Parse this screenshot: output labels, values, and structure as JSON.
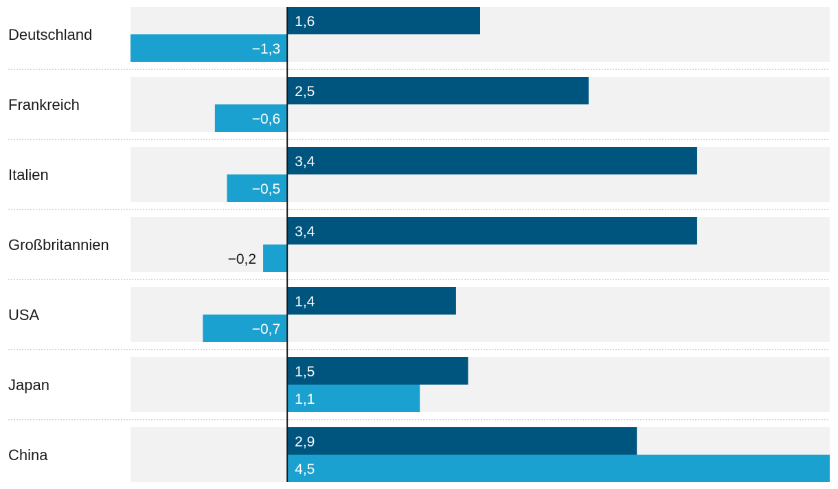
{
  "chart_data": {
    "type": "bar",
    "orientation": "horizontal",
    "categories": [
      "Deutschland",
      "Frankreich",
      "Italien",
      "Großbritannien",
      "USA",
      "Japan",
      "China"
    ],
    "series": [
      {
        "values": [
          1.6,
          2.5,
          3.4,
          3.4,
          1.4,
          1.5,
          2.9
        ],
        "labels": [
          "1,6",
          "2,5",
          "3,4",
          "3,4",
          "1,4",
          "1,5",
          "2,9"
        ],
        "color": "#00557f"
      },
      {
        "values": [
          -1.3,
          -0.6,
          -0.5,
          -0.2,
          -0.7,
          1.1,
          4.5
        ],
        "labels": [
          "−1,3",
          "−0,6",
          "−0,5",
          "−0,2",
          "−0,7",
          "1,1",
          "4,5"
        ],
        "color": "#1ba1cf"
      }
    ],
    "xlim": [
      -1.3,
      4.5
    ],
    "grid": false,
    "colors": {
      "row_background": "#f2f2f2",
      "separator": "#c8c8c8",
      "zero_line": "#1a1a1a",
      "label_on_bar": "#ffffff",
      "label_outside": "#1a1a1a"
    }
  }
}
